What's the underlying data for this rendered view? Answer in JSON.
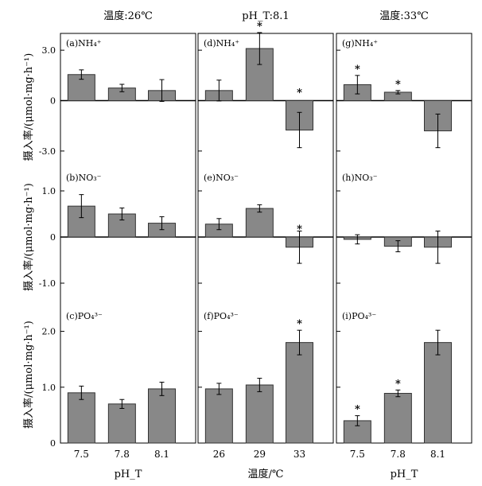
{
  "chart_data": {
    "type": "bar",
    "columns": [
      {
        "header": "温度:26℃",
        "xlabel": "pH_T",
        "categories": [
          "7.5",
          "7.8",
          "8.1"
        ]
      },
      {
        "header": "pH_T:8.1",
        "xlabel": "温度/℃",
        "categories": [
          "26",
          "29",
          "33"
        ]
      },
      {
        "header": "温度:33℃",
        "xlabel": "pH_T",
        "categories": [
          "7.5",
          "7.8",
          "8.1"
        ]
      }
    ],
    "rows": [
      {
        "ylabel": "摄入率/(μmol·mg·h⁻¹)",
        "ylim": [
          -4.0,
          4.0
        ],
        "yticks": [
          3.0,
          0,
          -3.0
        ],
        "ytick_labels": [
          "3.0",
          "0",
          "-3.0"
        ]
      },
      {
        "ylabel": "摄入率/(μmol·mg·h⁻¹)",
        "ylim": [
          -1.5,
          1.5
        ],
        "yticks": [
          1.0,
          0,
          -1.0
        ],
        "ytick_labels": [
          "1.0",
          "0",
          "-1.0"
        ]
      },
      {
        "ylabel": "摄入率/(μmol·mg·h⁻¹)",
        "ylim": [
          0,
          2.45
        ],
        "yticks": [
          2.0,
          1.0,
          0
        ],
        "ytick_labels": [
          "2.0",
          "1.0",
          "0"
        ]
      }
    ],
    "panels": [
      {
        "row": 0,
        "col": 0,
        "label": "(a)NH₄⁺",
        "values": [
          1.55,
          0.75,
          0.6
        ],
        "errors": [
          0.28,
          0.22,
          0.65
        ],
        "significant": [
          false,
          false,
          false
        ]
      },
      {
        "row": 0,
        "col": 1,
        "label": "(d)NH₄⁺",
        "values": [
          0.6,
          3.1,
          -1.75
        ],
        "errors": [
          0.62,
          0.95,
          1.05
        ],
        "significant": [
          false,
          true,
          true
        ]
      },
      {
        "row": 0,
        "col": 2,
        "label": "(g)NH₄⁺",
        "values": [
          0.95,
          0.5,
          -1.8
        ],
        "errors": [
          0.55,
          0.1,
          1.0
        ],
        "significant": [
          true,
          true,
          false
        ]
      },
      {
        "row": 1,
        "col": 0,
        "label": "(b)NO₃⁻",
        "values": [
          0.67,
          0.5,
          0.3
        ],
        "errors": [
          0.25,
          0.13,
          0.14
        ],
        "significant": [
          false,
          false,
          false
        ]
      },
      {
        "row": 1,
        "col": 1,
        "label": "(e)NO₃⁻",
        "values": [
          0.28,
          0.62,
          -0.22
        ],
        "errors": [
          0.12,
          0.08,
          0.35
        ],
        "significant": [
          false,
          false,
          true
        ]
      },
      {
        "row": 1,
        "col": 2,
        "label": "(h)NO₃⁻",
        "values": [
          -0.05,
          -0.2,
          -0.22
        ],
        "errors": [
          0.1,
          0.12,
          0.35
        ],
        "significant": [
          false,
          false,
          false
        ]
      },
      {
        "row": 2,
        "col": 0,
        "label": "(c)PO₄³⁻",
        "values": [
          0.9,
          0.7,
          0.97
        ],
        "errors": [
          0.12,
          0.08,
          0.12
        ],
        "significant": [
          false,
          false,
          false
        ]
      },
      {
        "row": 2,
        "col": 1,
        "label": "(f)PO₄³⁻",
        "values": [
          0.97,
          1.04,
          1.8
        ],
        "errors": [
          0.1,
          0.12,
          0.22
        ],
        "significant": [
          false,
          false,
          true
        ]
      },
      {
        "row": 2,
        "col": 2,
        "label": "(i)PO₄³⁻",
        "values": [
          0.4,
          0.89,
          1.8
        ],
        "errors": [
          0.09,
          0.06,
          0.22
        ],
        "significant": [
          true,
          true,
          false
        ]
      }
    ],
    "significance_marker": "*",
    "bar_color": "#888888",
    "grid": false,
    "legend": "none"
  }
}
